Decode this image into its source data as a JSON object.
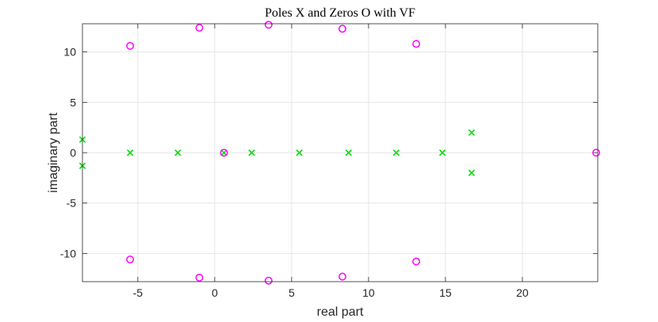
{
  "chart_data": {
    "type": "scatter",
    "title": "Poles X and Zeros O with VF",
    "xlabel": "real part",
    "ylabel": "imaginary part",
    "xlim": [
      -8.6,
      24.9
    ],
    "ylim": [
      -12.8,
      12.8
    ],
    "xticks": [
      -5,
      0,
      5,
      10,
      15,
      20
    ],
    "yticks": [
      -10,
      -5,
      0,
      5,
      10
    ],
    "xtick_labels": [
      "-5",
      "0",
      "5",
      "10",
      "15",
      "20"
    ],
    "ytick_labels": [
      "-10",
      "-5",
      "0",
      "5",
      "10"
    ],
    "grid": true,
    "series": [
      {
        "name": "Poles",
        "marker": "x",
        "color": "#00dd00",
        "points": [
          [
            -8.6,
            1.3
          ],
          [
            -8.6,
            -1.3
          ],
          [
            -5.5,
            0
          ],
          [
            -2.4,
            0
          ],
          [
            0.6,
            0
          ],
          [
            2.4,
            0
          ],
          [
            5.5,
            0
          ],
          [
            8.7,
            0
          ],
          [
            11.8,
            0
          ],
          [
            14.8,
            0
          ],
          [
            16.7,
            2.0
          ],
          [
            16.7,
            -2.0
          ]
        ]
      },
      {
        "name": "Zeros",
        "marker": "o",
        "color": "#ff00ff",
        "points": [
          [
            -5.5,
            10.6
          ],
          [
            -5.5,
            -10.6
          ],
          [
            -1.0,
            12.4
          ],
          [
            -1.0,
            -12.4
          ],
          [
            3.5,
            12.7
          ],
          [
            3.5,
            -12.7
          ],
          [
            8.3,
            12.3
          ],
          [
            8.3,
            -12.3
          ],
          [
            13.1,
            10.8
          ],
          [
            13.1,
            -10.8
          ],
          [
            0.6,
            0
          ],
          [
            24.8,
            0
          ]
        ]
      }
    ]
  }
}
